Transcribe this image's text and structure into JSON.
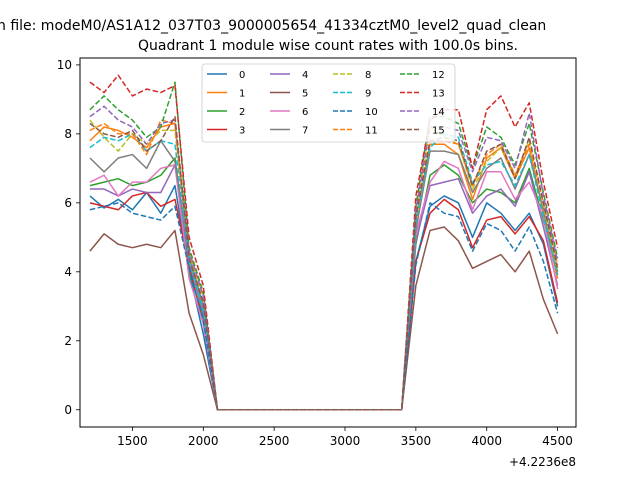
{
  "figure": {
    "suptitle": "n file: modeM0/AS1A12_037T03_9000005654_41334cztM0_level2_quad_clean",
    "offset_text": "+4.2236e8"
  },
  "chart_data": {
    "type": "line",
    "title": "Quadrant 1 module wise count rates with 100.0s bins.",
    "xlabel": "",
    "ylabel": "",
    "xlim": [
      1130,
      4630
    ],
    "ylim": [
      -0.5,
      10.2
    ],
    "xticks": [
      1500,
      2000,
      2500,
      3000,
      3500,
      4000,
      4500
    ],
    "yticks": [
      0,
      2,
      4,
      6,
      8,
      10
    ],
    "grid": false,
    "legend_position": "upper center",
    "legend_columns": 4,
    "x": [
      1200,
      1300,
      1400,
      1500,
      1600,
      1700,
      1800,
      1900,
      2000,
      2100,
      2200,
      2300,
      2400,
      2500,
      2600,
      2700,
      2800,
      2900,
      3000,
      3100,
      3200,
      3300,
      3400,
      3500,
      3600,
      3700,
      3800,
      3900,
      4000,
      4100,
      4200,
      4300,
      4400,
      4500
    ],
    "series": [
      {
        "name": "0",
        "color": "#1f77b4",
        "dash": "solid",
        "values": [
          6.2,
          5.85,
          6.1,
          5.8,
          6.3,
          5.7,
          6.5,
          4.0,
          2.2,
          0,
          0,
          0,
          0,
          0,
          0,
          0,
          0,
          0,
          0,
          0,
          0,
          0,
          0,
          4.3,
          5.9,
          6.2,
          6.0,
          5.0,
          6.0,
          5.7,
          5.2,
          5.7,
          4.8,
          3.0
        ]
      },
      {
        "name": "1",
        "color": "#ff7f0e",
        "dash": "solid",
        "values": [
          7.8,
          8.2,
          8.1,
          7.9,
          7.6,
          8.2,
          8.3,
          4.3,
          2.9,
          0,
          0,
          0,
          0,
          0,
          0,
          0,
          0,
          0,
          0,
          0,
          0,
          0,
          0,
          5.5,
          7.7,
          7.7,
          7.4,
          6.1,
          7.3,
          7.6,
          6.7,
          7.6,
          5.7,
          3.8
        ]
      },
      {
        "name": "2",
        "color": "#2ca02c",
        "dash": "solid",
        "values": [
          6.5,
          6.6,
          6.7,
          6.5,
          6.6,
          6.8,
          7.3,
          4.0,
          2.7,
          0,
          0,
          0,
          0,
          0,
          0,
          0,
          0,
          0,
          0,
          0,
          0,
          0,
          0,
          4.8,
          6.8,
          7.1,
          6.8,
          6.0,
          6.4,
          6.3,
          6.0,
          7.0,
          5.5,
          4.0
        ]
      },
      {
        "name": "3",
        "color": "#d62728",
        "dash": "solid",
        "values": [
          6.0,
          5.9,
          5.8,
          6.2,
          6.3,
          5.9,
          6.1,
          4.2,
          2.5,
          0,
          0,
          0,
          0,
          0,
          0,
          0,
          0,
          0,
          0,
          0,
          0,
          0,
          0,
          4.3,
          5.7,
          6.1,
          5.8,
          4.7,
          5.5,
          5.6,
          5.1,
          5.6,
          4.9,
          3.1
        ]
      },
      {
        "name": "4",
        "color": "#9467bd",
        "dash": "solid",
        "values": [
          6.4,
          6.4,
          6.2,
          6.4,
          6.3,
          6.3,
          7.1,
          4.3,
          2.8,
          0,
          0,
          0,
          0,
          0,
          0,
          0,
          0,
          0,
          0,
          0,
          0,
          0,
          0,
          4.9,
          6.5,
          6.6,
          6.7,
          5.7,
          6.2,
          6.4,
          5.9,
          6.9,
          5.3,
          3.6
        ]
      },
      {
        "name": "5",
        "color": "#8c564b",
        "dash": "solid",
        "values": [
          4.6,
          5.1,
          4.8,
          4.7,
          4.8,
          4.7,
          5.2,
          2.8,
          1.6,
          0,
          0,
          0,
          0,
          0,
          0,
          0,
          0,
          0,
          0,
          0,
          0,
          0,
          0,
          3.6,
          5.2,
          5.3,
          4.9,
          4.1,
          4.3,
          4.5,
          4.0,
          4.6,
          3.2,
          2.2
        ]
      },
      {
        "name": "6",
        "color": "#e377c2",
        "dash": "solid",
        "values": [
          6.6,
          6.8,
          6.2,
          6.6,
          6.6,
          7.0,
          7.1,
          3.8,
          2.5,
          0,
          0,
          0,
          0,
          0,
          0,
          0,
          0,
          0,
          0,
          0,
          0,
          0,
          0,
          5.1,
          6.6,
          7.2,
          7.0,
          5.8,
          6.9,
          6.9,
          6.1,
          6.6,
          5.6,
          3.5
        ]
      },
      {
        "name": "7",
        "color": "#7f7f7f",
        "dash": "solid",
        "values": [
          7.3,
          6.9,
          7.3,
          7.4,
          7.0,
          7.8,
          7.2,
          4.5,
          3.0,
          0,
          0,
          0,
          0,
          0,
          0,
          0,
          0,
          0,
          0,
          0,
          0,
          0,
          0,
          5.2,
          7.5,
          7.5,
          7.4,
          6.3,
          7.0,
          7.3,
          6.4,
          7.4,
          5.8,
          3.9
        ]
      },
      {
        "name": "8",
        "color": "#bcbd22",
        "dash": "dashed",
        "values": [
          8.4,
          7.9,
          7.5,
          8.0,
          7.7,
          8.1,
          8.1,
          4.5,
          3.2,
          0,
          0,
          0,
          0,
          0,
          0,
          0,
          0,
          0,
          0,
          0,
          0,
          0,
          0,
          5.6,
          8.2,
          7.9,
          7.7,
          6.4,
          7.2,
          7.6,
          6.8,
          7.8,
          5.9,
          4.0
        ]
      },
      {
        "name": "9",
        "color": "#17becf",
        "dash": "dashed",
        "values": [
          7.6,
          7.9,
          7.8,
          8.0,
          7.5,
          7.8,
          7.7,
          4.3,
          2.9,
          0,
          0,
          0,
          0,
          0,
          0,
          0,
          0,
          0,
          0,
          0,
          0,
          0,
          0,
          5.4,
          7.6,
          8.0,
          7.9,
          6.6,
          7.1,
          7.2,
          6.5,
          7.4,
          5.6,
          3.9
        ]
      },
      {
        "name": "10",
        "color": "#1f77b4",
        "dash": "dashed",
        "values": [
          5.8,
          5.9,
          6.0,
          5.7,
          5.6,
          5.5,
          5.9,
          4.1,
          2.6,
          0,
          0,
          0,
          0,
          0,
          0,
          0,
          0,
          0,
          0,
          0,
          0,
          0,
          0,
          4.2,
          6.0,
          5.7,
          5.6,
          4.6,
          5.4,
          5.2,
          4.6,
          5.3,
          4.3,
          2.8
        ]
      },
      {
        "name": "11",
        "color": "#ff7f0e",
        "dash": "dashed",
        "values": [
          8.1,
          8.3,
          8.0,
          8.0,
          7.4,
          8.4,
          8.3,
          4.6,
          3.3,
          0,
          0,
          0,
          0,
          0,
          0,
          0,
          0,
          0,
          0,
          0,
          0,
          0,
          0,
          5.8,
          7.8,
          7.8,
          7.7,
          6.5,
          7.4,
          7.7,
          6.8,
          7.7,
          6.0,
          4.2
        ]
      },
      {
        "name": "12",
        "color": "#2ca02c",
        "dash": "dashed",
        "values": [
          8.7,
          9.1,
          8.7,
          8.4,
          7.9,
          8.2,
          9.5,
          4.7,
          3.4,
          0,
          0,
          0,
          0,
          0,
          0,
          0,
          0,
          0,
          0,
          0,
          0,
          0,
          0,
          5.9,
          8.5,
          8.5,
          8.3,
          7.0,
          8.2,
          7.9,
          7.1,
          8.3,
          6.3,
          4.4
        ]
      },
      {
        "name": "13",
        "color": "#d62728",
        "dash": "dashed",
        "values": [
          9.5,
          9.2,
          9.7,
          9.1,
          9.3,
          9.2,
          9.4,
          5.0,
          3.6,
          0,
          0,
          0,
          0,
          0,
          0,
          0,
          0,
          0,
          0,
          0,
          0,
          0,
          0,
          6.2,
          8.4,
          8.7,
          8.7,
          7.0,
          8.7,
          9.1,
          8.2,
          8.9,
          6.6,
          4.7
        ]
      },
      {
        "name": "14",
        "color": "#9467bd",
        "dash": "dashed",
        "values": [
          8.5,
          8.8,
          8.4,
          8.2,
          7.7,
          8.3,
          8.4,
          4.6,
          3.3,
          0,
          0,
          0,
          0,
          0,
          0,
          0,
          0,
          0,
          0,
          0,
          0,
          0,
          0,
          5.8,
          8.2,
          8.2,
          8.1,
          6.9,
          7.9,
          7.8,
          7.0,
          8.6,
          6.2,
          4.3
        ]
      },
      {
        "name": "15",
        "color": "#8c564b",
        "dash": "dashed",
        "values": [
          8.3,
          8.0,
          7.9,
          8.1,
          7.5,
          7.8,
          8.5,
          4.4,
          3.1,
          0,
          0,
          0,
          0,
          0,
          0,
          0,
          0,
          0,
          0,
          0,
          0,
          0,
          0,
          5.6,
          7.8,
          7.9,
          7.8,
          6.5,
          7.5,
          7.7,
          6.7,
          7.9,
          6.0,
          4.1
        ]
      }
    ]
  }
}
